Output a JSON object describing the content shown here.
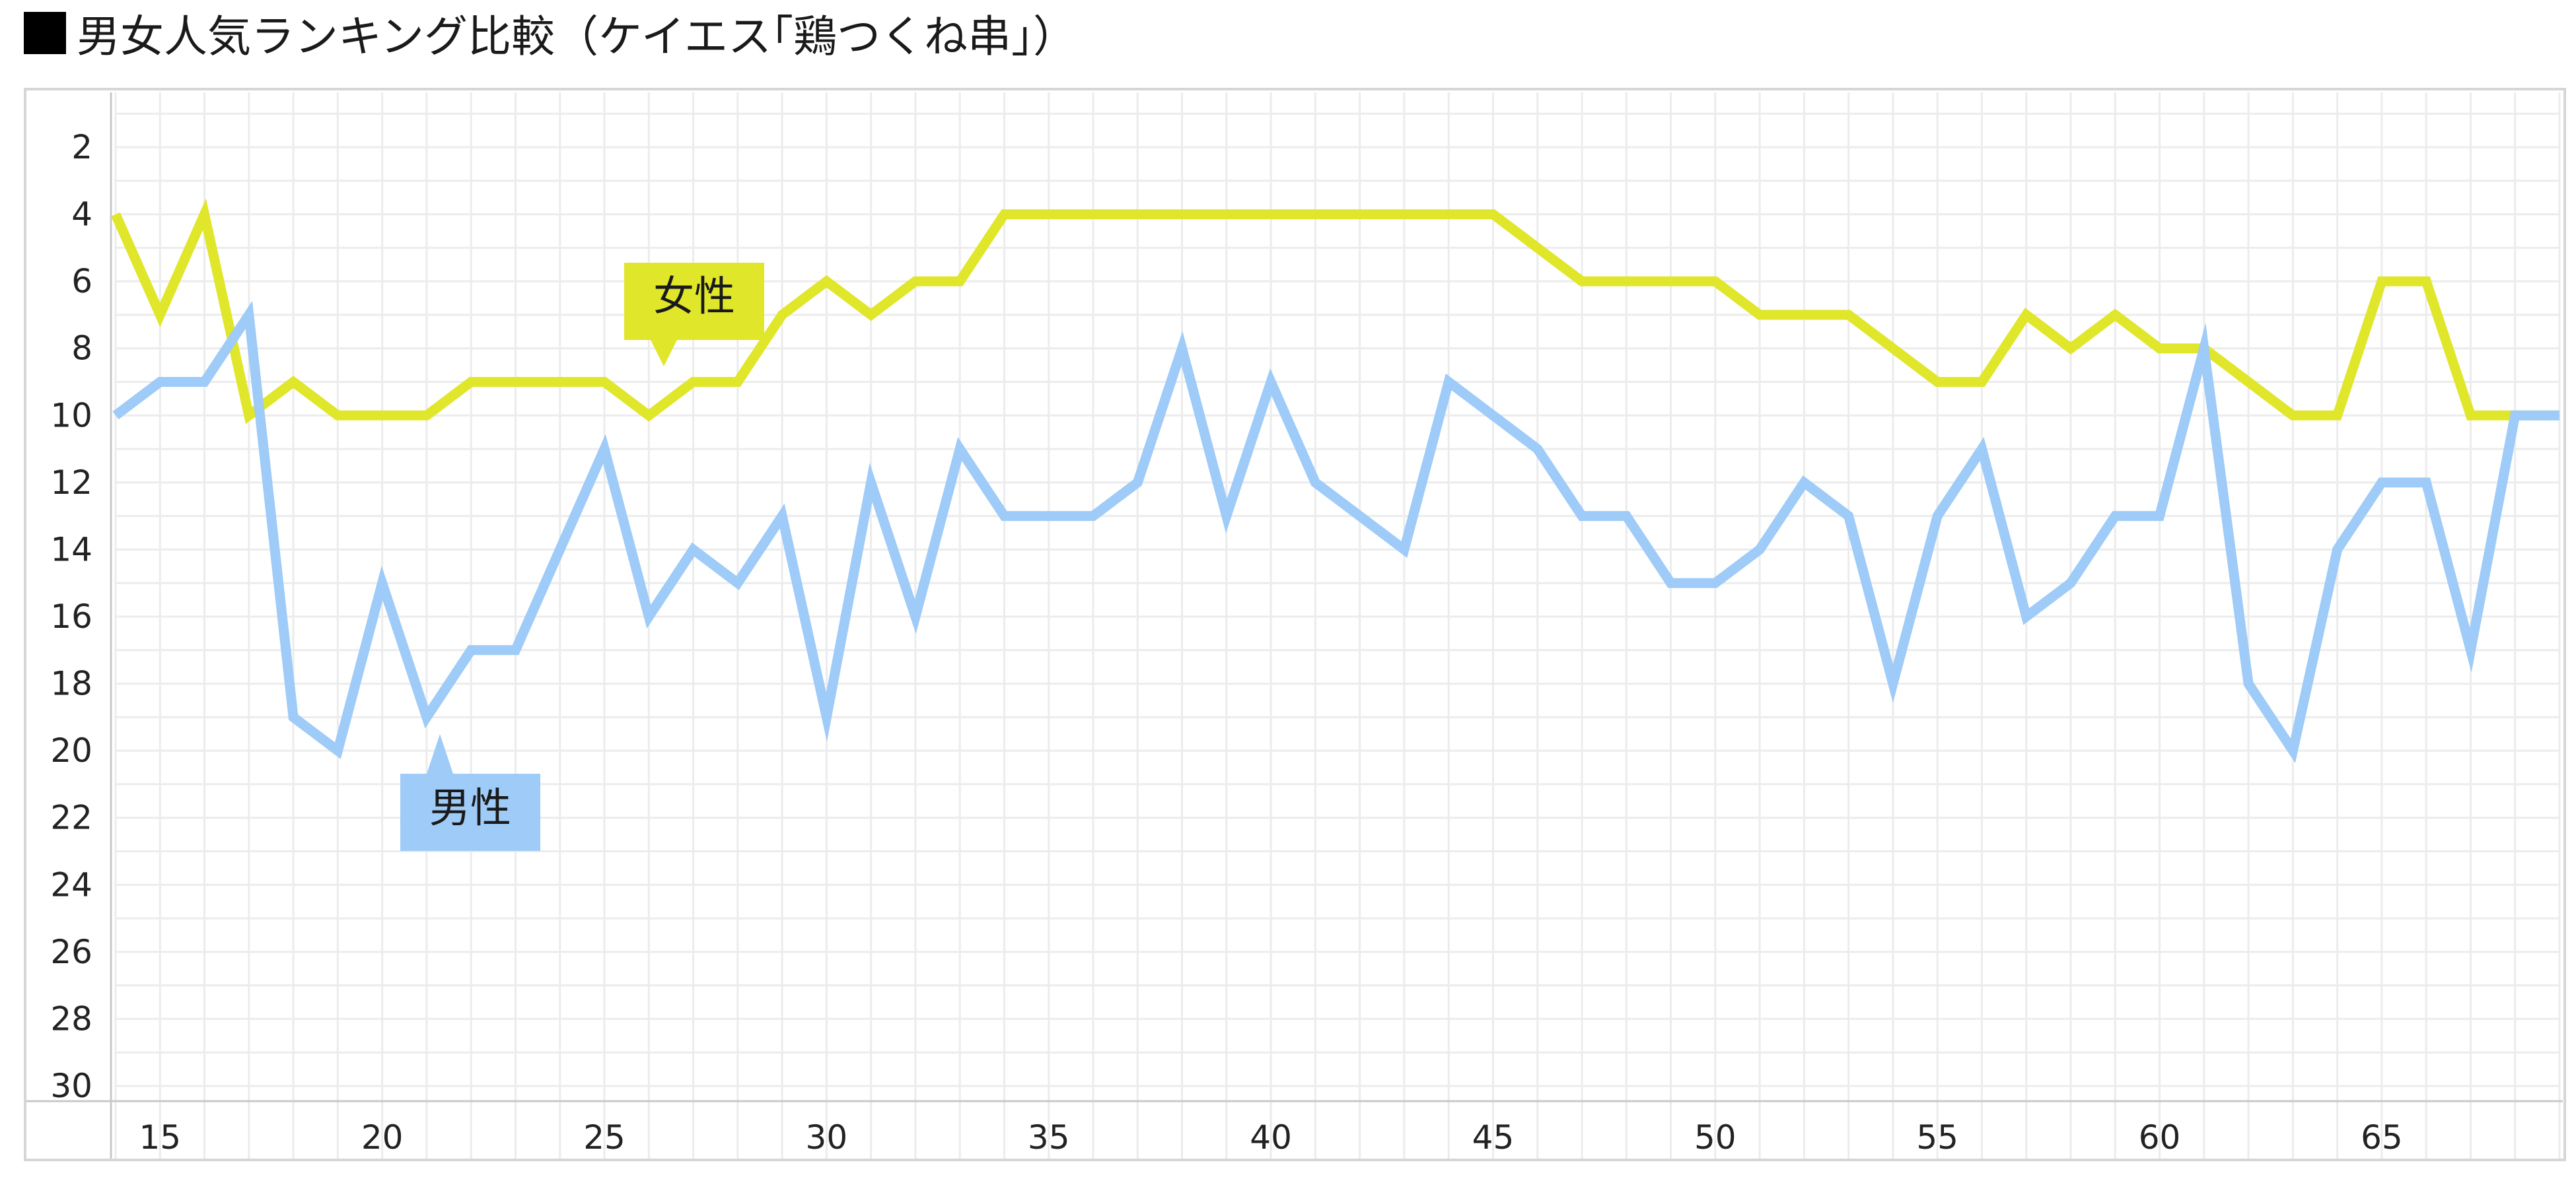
{
  "title": "男女人気ランキング比較（ケイエス｢鶏つくね串｣）",
  "colors": {
    "female": "#e0e62a",
    "male": "#9ecbf7",
    "grid": "#ececec",
    "frame": "#d6d6d6"
  },
  "chart_data": {
    "type": "line",
    "title": "男女人気ランキング比較（ケイエス｢鶏つくね串｣）",
    "xlabel": "",
    "ylabel": "",
    "xlim": [
      14,
      69
    ],
    "ylim": [
      30,
      1
    ],
    "y_reversed": true,
    "x_ticks": [
      15,
      20,
      25,
      30,
      35,
      40,
      45,
      50,
      55,
      60,
      65
    ],
    "y_ticks": [
      2,
      4,
      6,
      8,
      10,
      12,
      14,
      16,
      18,
      20,
      22,
      24,
      26,
      28,
      30
    ],
    "grid": true,
    "x": [
      14,
      15,
      16,
      17,
      18,
      19,
      20,
      21,
      22,
      23,
      24,
      25,
      26,
      27,
      28,
      29,
      30,
      31,
      32,
      33,
      34,
      35,
      36,
      37,
      38,
      39,
      40,
      41,
      42,
      43,
      44,
      45,
      46,
      47,
      48,
      49,
      50,
      51,
      52,
      53,
      54,
      55,
      56,
      57,
      58,
      59,
      60,
      61,
      62,
      63,
      64,
      65,
      66,
      67,
      68,
      69
    ],
    "series": [
      {
        "name": "女性",
        "color": "#e0e62a",
        "values": [
          4,
          7,
          4,
          10,
          9,
          10,
          10,
          10,
          9,
          9,
          9,
          9,
          10,
          9,
          9,
          7,
          6,
          7,
          6,
          6,
          4,
          4,
          4,
          4,
          4,
          4,
          4,
          4,
          4,
          4,
          4,
          4,
          5,
          6,
          6,
          6,
          6,
          7,
          7,
          7,
          8,
          9,
          9,
          7,
          8,
          7,
          8,
          8,
          9,
          10,
          10,
          6,
          6,
          10,
          10,
          10
        ]
      },
      {
        "name": "男性",
        "color": "#9ecbf7",
        "values": [
          10,
          9,
          9,
          7,
          19,
          20,
          15,
          19,
          17,
          17,
          14,
          11,
          16,
          14,
          15,
          13,
          19,
          12,
          16,
          11,
          13,
          13,
          13,
          12,
          8,
          13,
          9,
          12,
          13,
          14,
          9,
          10,
          11,
          13,
          13,
          15,
          15,
          14,
          12,
          13,
          18,
          13,
          11,
          16,
          15,
          13,
          13,
          8,
          18,
          20,
          14,
          12,
          12,
          17,
          10,
          10
        ]
      }
    ]
  },
  "annotations": {
    "female": "女性",
    "male": "男性"
  }
}
